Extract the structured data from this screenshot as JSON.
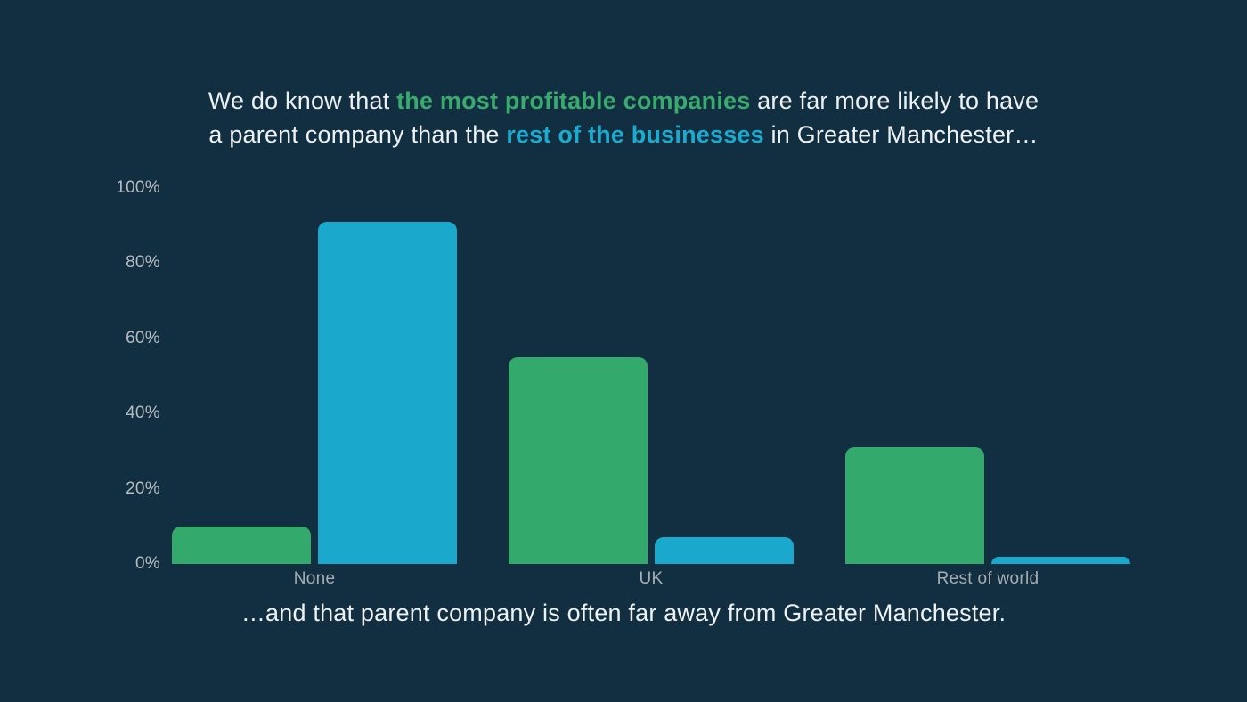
{
  "title": {
    "line1": [
      {
        "text": "We do know that ",
        "style": "plain"
      },
      {
        "text": "the most profitable companies",
        "style": "green"
      },
      {
        "text": " are far more likely to have",
        "style": "plain"
      }
    ],
    "line2": [
      {
        "text": "a parent company than the ",
        "style": "plain"
      },
      {
        "text": "rest of the businesses",
        "style": "blue"
      },
      {
        "text": " in Greater Manchester…",
        "style": "plain"
      }
    ]
  },
  "caption": "…and that parent company is often far away from Greater Manchester.",
  "colors": {
    "background": "#112f41",
    "green": "#34a96c",
    "blue": "#1ba8cd",
    "title_text": "#edf1f4",
    "highlight_green": "#3aaa6f",
    "highlight_blue": "#1caacf",
    "y_tick_label": "#b6bcc2",
    "category_label": "#a7aeb5"
  },
  "chart_data": {
    "type": "bar",
    "title": "Parent company location: most profitable companies vs rest of businesses",
    "categories": [
      "None",
      "UK",
      "Rest of world"
    ],
    "series": [
      {
        "name": "the most profitable companies",
        "color": "#34a96c",
        "values": [
          10,
          55,
          31
        ]
      },
      {
        "name": "rest of the businesses",
        "color": "#1ba8cd",
        "values": [
          91,
          7,
          2
        ]
      }
    ],
    "xlabel": "",
    "ylabel": "",
    "ylim": [
      0,
      100
    ],
    "y_ticks": [
      {
        "label": "0%",
        "value": 0
      },
      {
        "label": "20%",
        "value": 20
      },
      {
        "label": "40%",
        "value": 40
      },
      {
        "label": "60%",
        "value": 60
      },
      {
        "label": "80%",
        "value": 80
      },
      {
        "label": "100%",
        "value": 100
      }
    ],
    "grid": false,
    "legend_position": "none"
  }
}
